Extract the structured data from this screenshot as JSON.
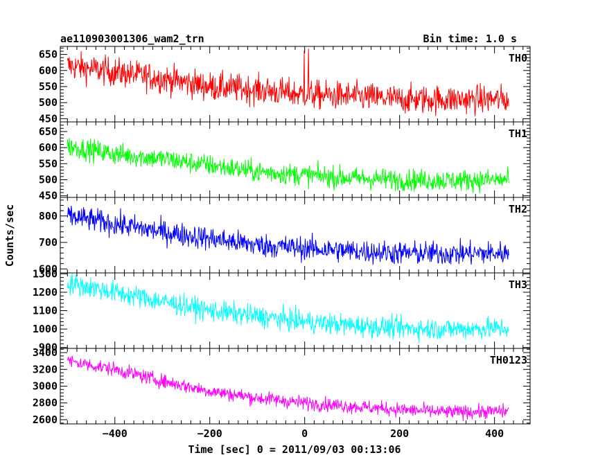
{
  "header": {
    "title": "ae110903001306_wam2_trn",
    "bin_time": "Bin time: 1.0 s"
  },
  "colors": {
    "th0": "#ff0000",
    "th1": "#00ff00",
    "th2": "#0000ff",
    "th3": "#00ffff",
    "th0123": "#ff00ff",
    "axes": "#000000",
    "background": "#ffffff"
  },
  "chart_data": {
    "type": "line",
    "title": "ae110903001306_wam2_trn",
    "subtitle": "Bin time: 1.0 s",
    "xlabel": "Time [sec] 0 = 2011/09/03 00:13:06",
    "ylabel": "Counts/sec",
    "xlim": [
      -515,
      475
    ],
    "x_ticks": [
      -400,
      -200,
      0,
      200,
      400
    ],
    "x_tick_labels": [
      "−400",
      "−200",
      "0",
      "200",
      "400"
    ],
    "x_data_range": [
      -500,
      430
    ],
    "bin_time_s": 1.0,
    "legend": "per-panel label, top-right",
    "grid": false,
    "panels": [
      {
        "name": "TH0",
        "color": "#ff0000",
        "ylim": [
          440,
          675
        ],
        "yticks": [
          450,
          500,
          550,
          600,
          650
        ],
        "trend": [
          [
            -500,
            615
          ],
          [
            -400,
            595
          ],
          [
            -300,
            575
          ],
          [
            -200,
            550
          ],
          [
            -100,
            540
          ],
          [
            0,
            525
          ],
          [
            100,
            520
          ],
          [
            200,
            510
          ],
          [
            300,
            510
          ],
          [
            430,
            510
          ]
        ],
        "noise_amplitude": 32,
        "spikes": [
          [
            -1,
            662
          ],
          [
            8,
            668
          ]
        ]
      },
      {
        "name": "TH1",
        "color": "#00ff00",
        "ylim": [
          445,
          680
        ],
        "yticks": [
          450,
          500,
          550,
          600,
          650
        ],
        "trend": [
          [
            -500,
            605
          ],
          [
            -400,
            580
          ],
          [
            -300,
            565
          ],
          [
            -200,
            545
          ],
          [
            -100,
            525
          ],
          [
            0,
            515
          ],
          [
            100,
            505
          ],
          [
            200,
            500
          ],
          [
            300,
            498
          ],
          [
            430,
            500
          ]
        ],
        "noise_amplitude": 24,
        "spikes": []
      },
      {
        "name": "TH2",
        "color": "#0000ff",
        "ylim": [
          585,
          870
        ],
        "yticks": [
          600,
          700,
          800
        ],
        "trend": [
          [
            -500,
            800
          ],
          [
            -400,
            770
          ],
          [
            -300,
            740
          ],
          [
            -200,
            715
          ],
          [
            -100,
            690
          ],
          [
            0,
            678
          ],
          [
            100,
            668
          ],
          [
            200,
            660
          ],
          [
            300,
            658
          ],
          [
            430,
            660
          ]
        ],
        "noise_amplitude": 32,
        "spikes": []
      },
      {
        "name": "TH3",
        "color": "#00ffff",
        "ylim": [
          895,
          1305
        ],
        "yticks": [
          900,
          1000,
          1100,
          1200,
          1300
        ],
        "trend": [
          [
            -500,
            1250
          ],
          [
            -400,
            1200
          ],
          [
            -300,
            1150
          ],
          [
            -200,
            1100
          ],
          [
            -100,
            1070
          ],
          [
            0,
            1040
          ],
          [
            100,
            1020
          ],
          [
            200,
            1005
          ],
          [
            300,
            1000
          ],
          [
            430,
            1005
          ]
        ],
        "noise_amplitude": 42,
        "spikes": []
      },
      {
        "name": "TH0123",
        "color": "#ff00ff",
        "ylim": [
          2550,
          3450
        ],
        "yticks": [
          2600,
          2800,
          3000,
          3200,
          3400
        ],
        "trend": [
          [
            -500,
            3300
          ],
          [
            -400,
            3200
          ],
          [
            -300,
            3060
          ],
          [
            -200,
            2940
          ],
          [
            -100,
            2860
          ],
          [
            0,
            2800
          ],
          [
            100,
            2760
          ],
          [
            200,
            2720
          ],
          [
            300,
            2690
          ],
          [
            430,
            2700
          ]
        ],
        "noise_amplitude": 60,
        "spikes": []
      }
    ]
  }
}
